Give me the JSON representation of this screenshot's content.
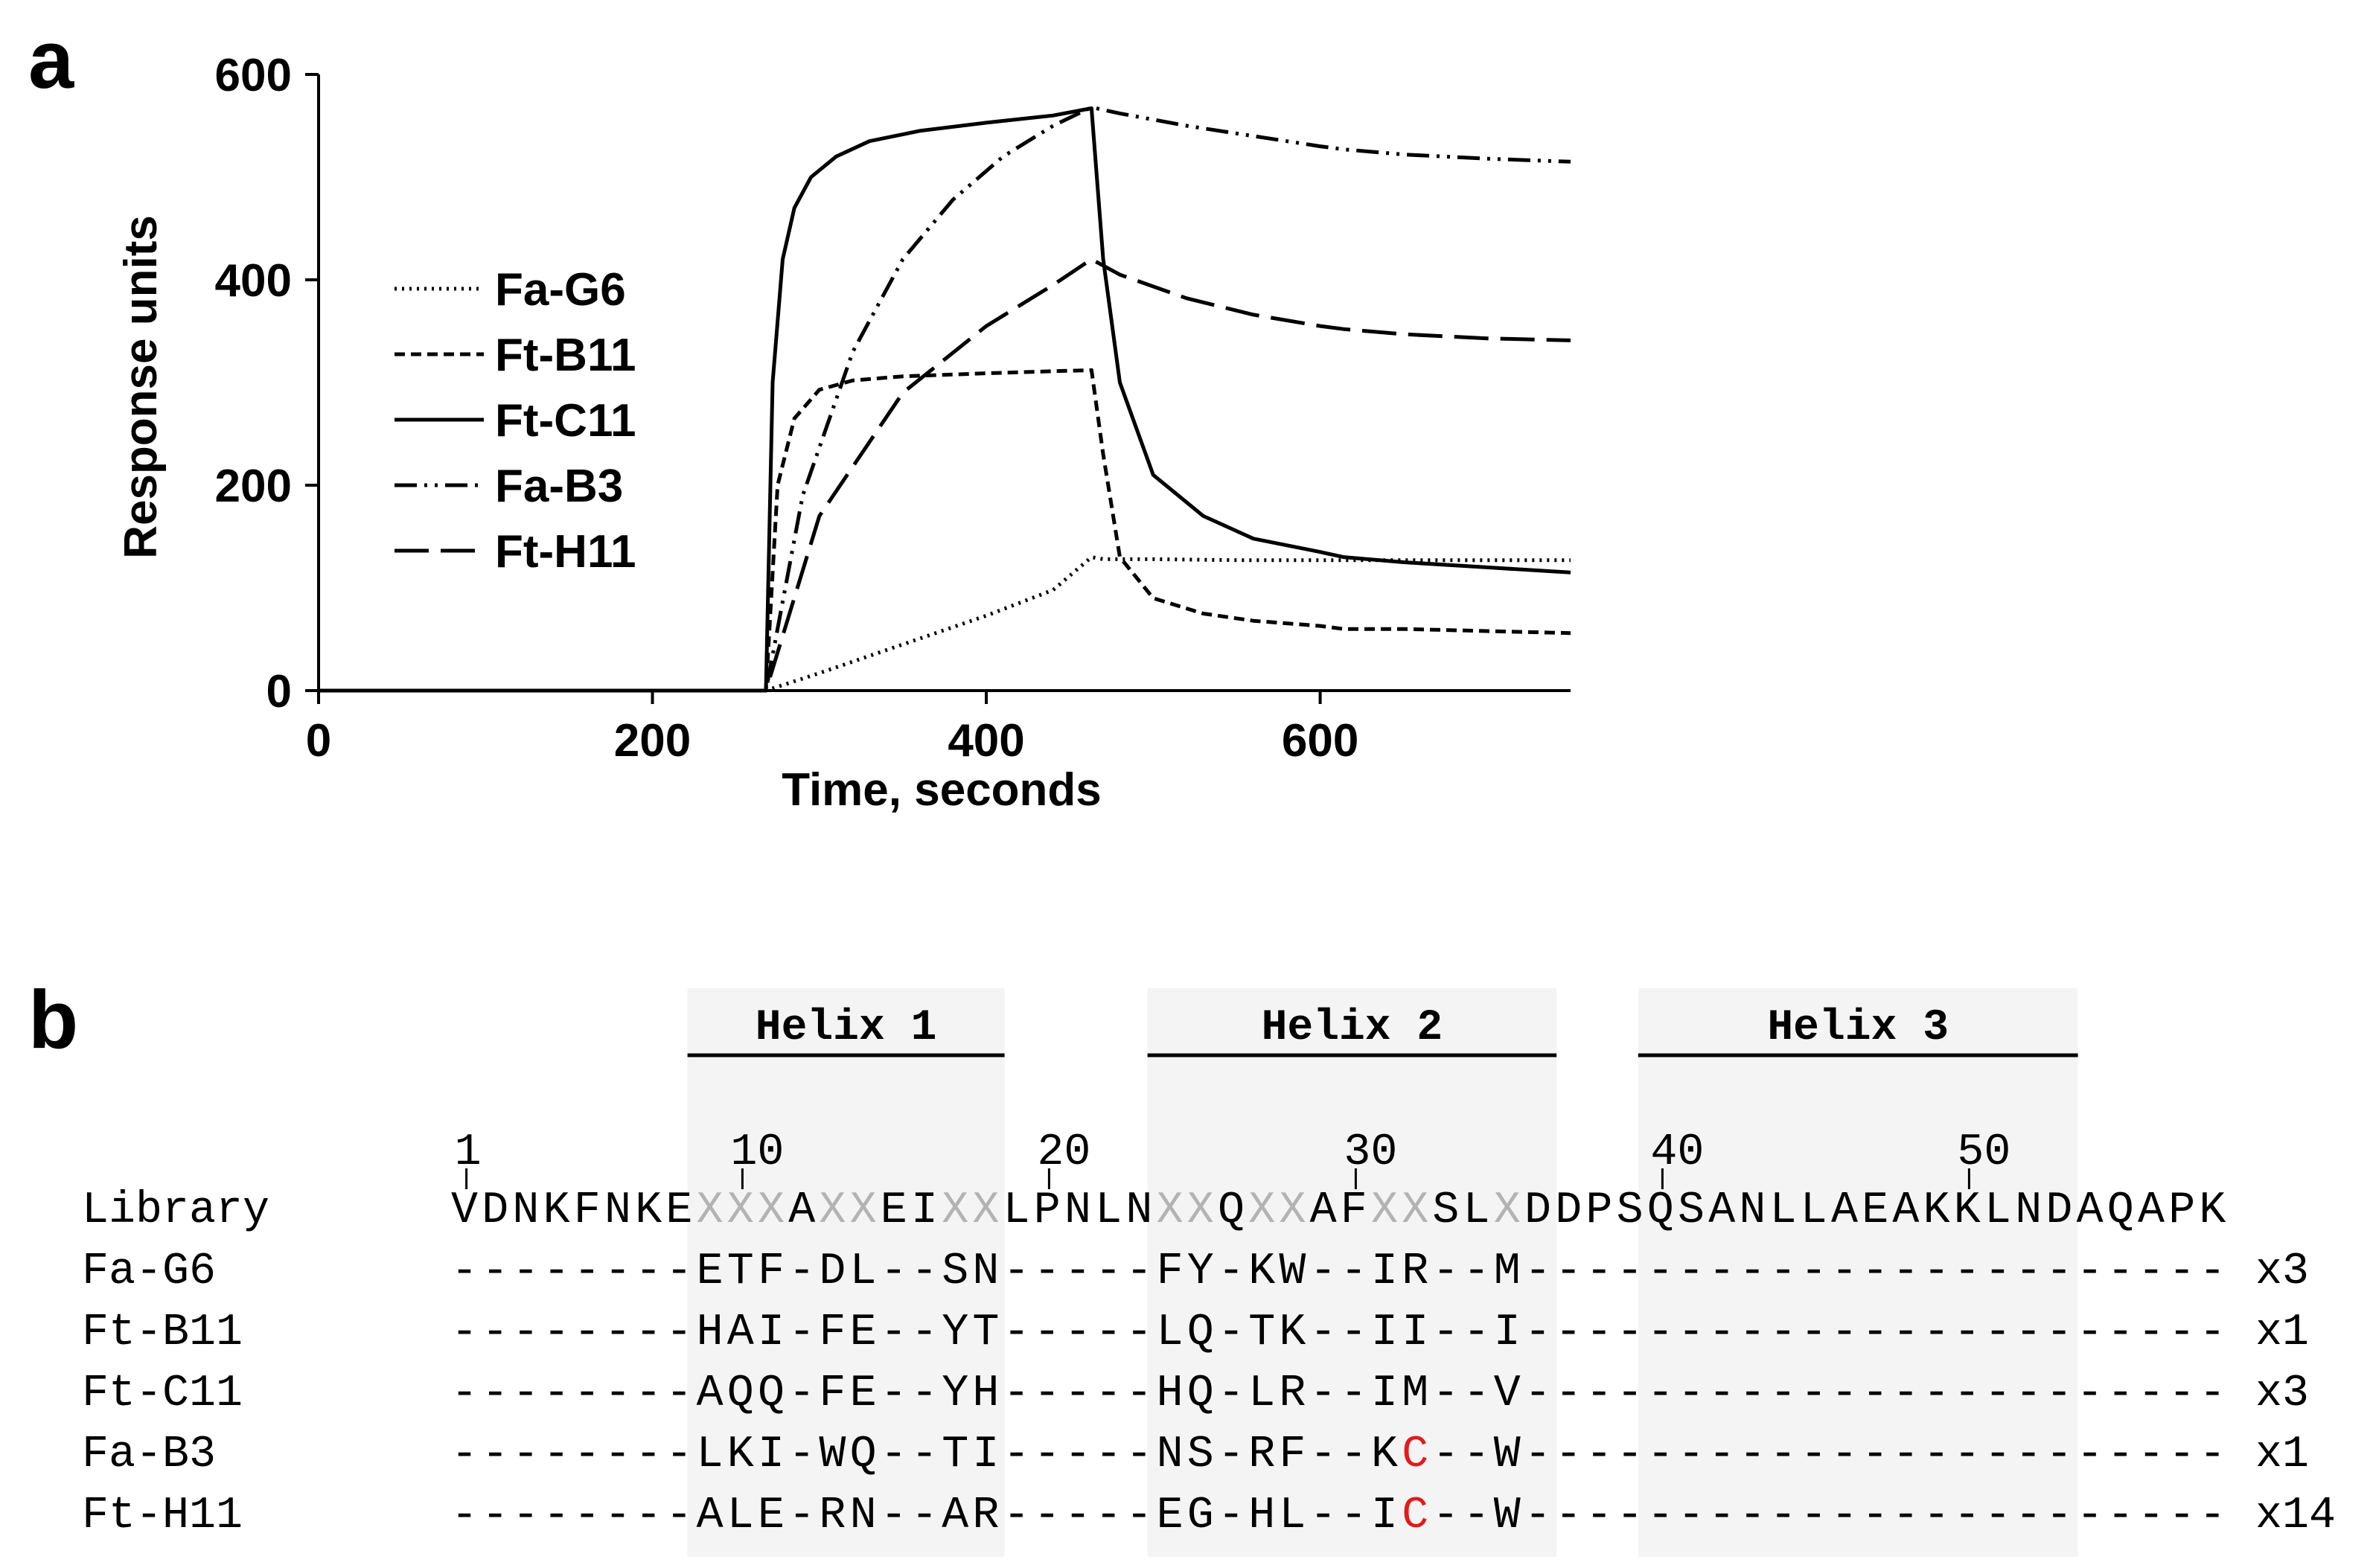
{
  "panels": {
    "a": "a",
    "b": "b"
  },
  "chart_data": {
    "type": "line",
    "title": "",
    "xlabel": "Time, seconds",
    "ylabel": "Response units",
    "xlim": [
      0,
      750
    ],
    "ylim": [
      0,
      600
    ],
    "xticks": [
      0,
      200,
      400,
      600
    ],
    "yticks": [
      0,
      200,
      400,
      600
    ],
    "grid": false,
    "legend_position": "left",
    "series": [
      {
        "name": "Fa-G6",
        "dash": "dotted",
        "x": [
          0,
          268,
          300,
          350,
          400,
          440,
          463,
          470,
          500,
          550,
          600,
          614,
          650,
          700,
          750
        ],
        "y": [
          0,
          0,
          17,
          45,
          73,
          98,
          130,
          128,
          128,
          127,
          127,
          127,
          127,
          127,
          127
        ]
      },
      {
        "name": "Ft-B11",
        "dash": "short-dash",
        "x": [
          0,
          268,
          275,
          285,
          300,
          320,
          350,
          400,
          440,
          463,
          470,
          480,
          500,
          530,
          560,
          600,
          614,
          650,
          700,
          750
        ],
        "y": [
          0,
          0,
          200,
          265,
          293,
          302,
          306,
          309,
          311,
          312,
          230,
          130,
          90,
          75,
          68,
          63,
          60,
          60,
          58,
          56
        ]
      },
      {
        "name": "Ft-C11",
        "dash": "solid",
        "x": [
          0,
          268,
          272,
          278,
          285,
          295,
          310,
          330,
          360,
          400,
          440,
          463,
          470,
          480,
          500,
          530,
          560,
          600,
          614,
          650,
          700,
          750
        ],
        "y": [
          0,
          0,
          300,
          420,
          470,
          500,
          520,
          535,
          545,
          553,
          560,
          567,
          420,
          300,
          210,
          170,
          148,
          135,
          130,
          125,
          120,
          115
        ]
      },
      {
        "name": "Fa-B3",
        "dash": "dash-dot-dot",
        "x": [
          0,
          268,
          290,
          320,
          350,
          380,
          410,
          440,
          463,
          480,
          520,
          560,
          600,
          614,
          650,
          700,
          750
        ],
        "y": [
          0,
          0,
          190,
          330,
          420,
          478,
          520,
          550,
          568,
          562,
          550,
          540,
          530,
          527,
          522,
          518,
          515
        ]
      },
      {
        "name": "Ft-H11",
        "dash": "long-dash",
        "x": [
          0,
          268,
          300,
          350,
          400,
          440,
          463,
          480,
          520,
          560,
          600,
          614,
          650,
          700,
          750
        ],
        "y": [
          0,
          0,
          170,
          290,
          355,
          395,
          420,
          405,
          382,
          366,
          355,
          352,
          347,
          343,
          341
        ]
      }
    ]
  },
  "alignment": {
    "helices": [
      {
        "label": "Helix 1"
      },
      {
        "label": "Helix 2"
      },
      {
        "label": "Helix 3"
      }
    ],
    "positions": [
      "1",
      "10",
      "20",
      "30",
      "40",
      "50"
    ],
    "rows": [
      {
        "name": "Library",
        "seq": "VDNKFNKEXXXAXXEIXXLPNLNXXQXXAFXXSLXDDPSQSANLLAEAKKLNDAQAPK",
        "count": ""
      },
      {
        "name": "Fa-G6",
        "seq": "--------ETF-DL--SN-----FY-KW--IR--M-----------------------",
        "count": "x3"
      },
      {
        "name": "Ft-B11",
        "seq": "--------HAI-FE--YT-----LQ-TK--II--I-----------------------",
        "count": "x1"
      },
      {
        "name": "Ft-C11",
        "seq": "--------AQQ-FE--YH-----HQ-LR--IM--V-----------------------",
        "count": "x3"
      },
      {
        "name": "Fa-B3",
        "seq": "--------LKI-WQ--TI-----NS-RF--KC--W-----------------------",
        "count": "x1"
      },
      {
        "name": "Ft-H11",
        "seq": "--------ALE-RN--AR-----EG-HL--IC--W-----------------------",
        "count": "x14"
      }
    ],
    "colors": {
      "randomized": "#b3b3b3",
      "cysteine": "#e31a1c",
      "helix_shade": "#f4f4f4"
    }
  }
}
